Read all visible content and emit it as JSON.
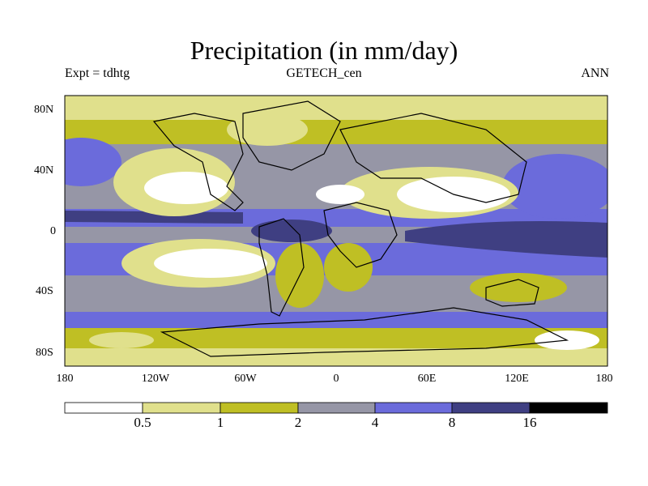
{
  "title": "Precipitation (in mm/day)",
  "experiment": "Expt = tdhtg",
  "dataset": "GETECH_cen",
  "season": "ANN",
  "lat_ticks": [
    "80N",
    "40N",
    "0",
    "40S",
    "80S"
  ],
  "lon_ticks": [
    "180",
    "120W",
    "60W",
    "0",
    "60E",
    "120E",
    "180"
  ],
  "colorbar": {
    "labels": [
      "0.5",
      "1",
      "2",
      "4",
      "8",
      "16"
    ],
    "colors": [
      "#ffffff",
      "#e0e08c",
      "#bfbf24",
      "#9696a6",
      "#6b6bdb",
      "#3f3f82",
      "#000000"
    ]
  }
}
